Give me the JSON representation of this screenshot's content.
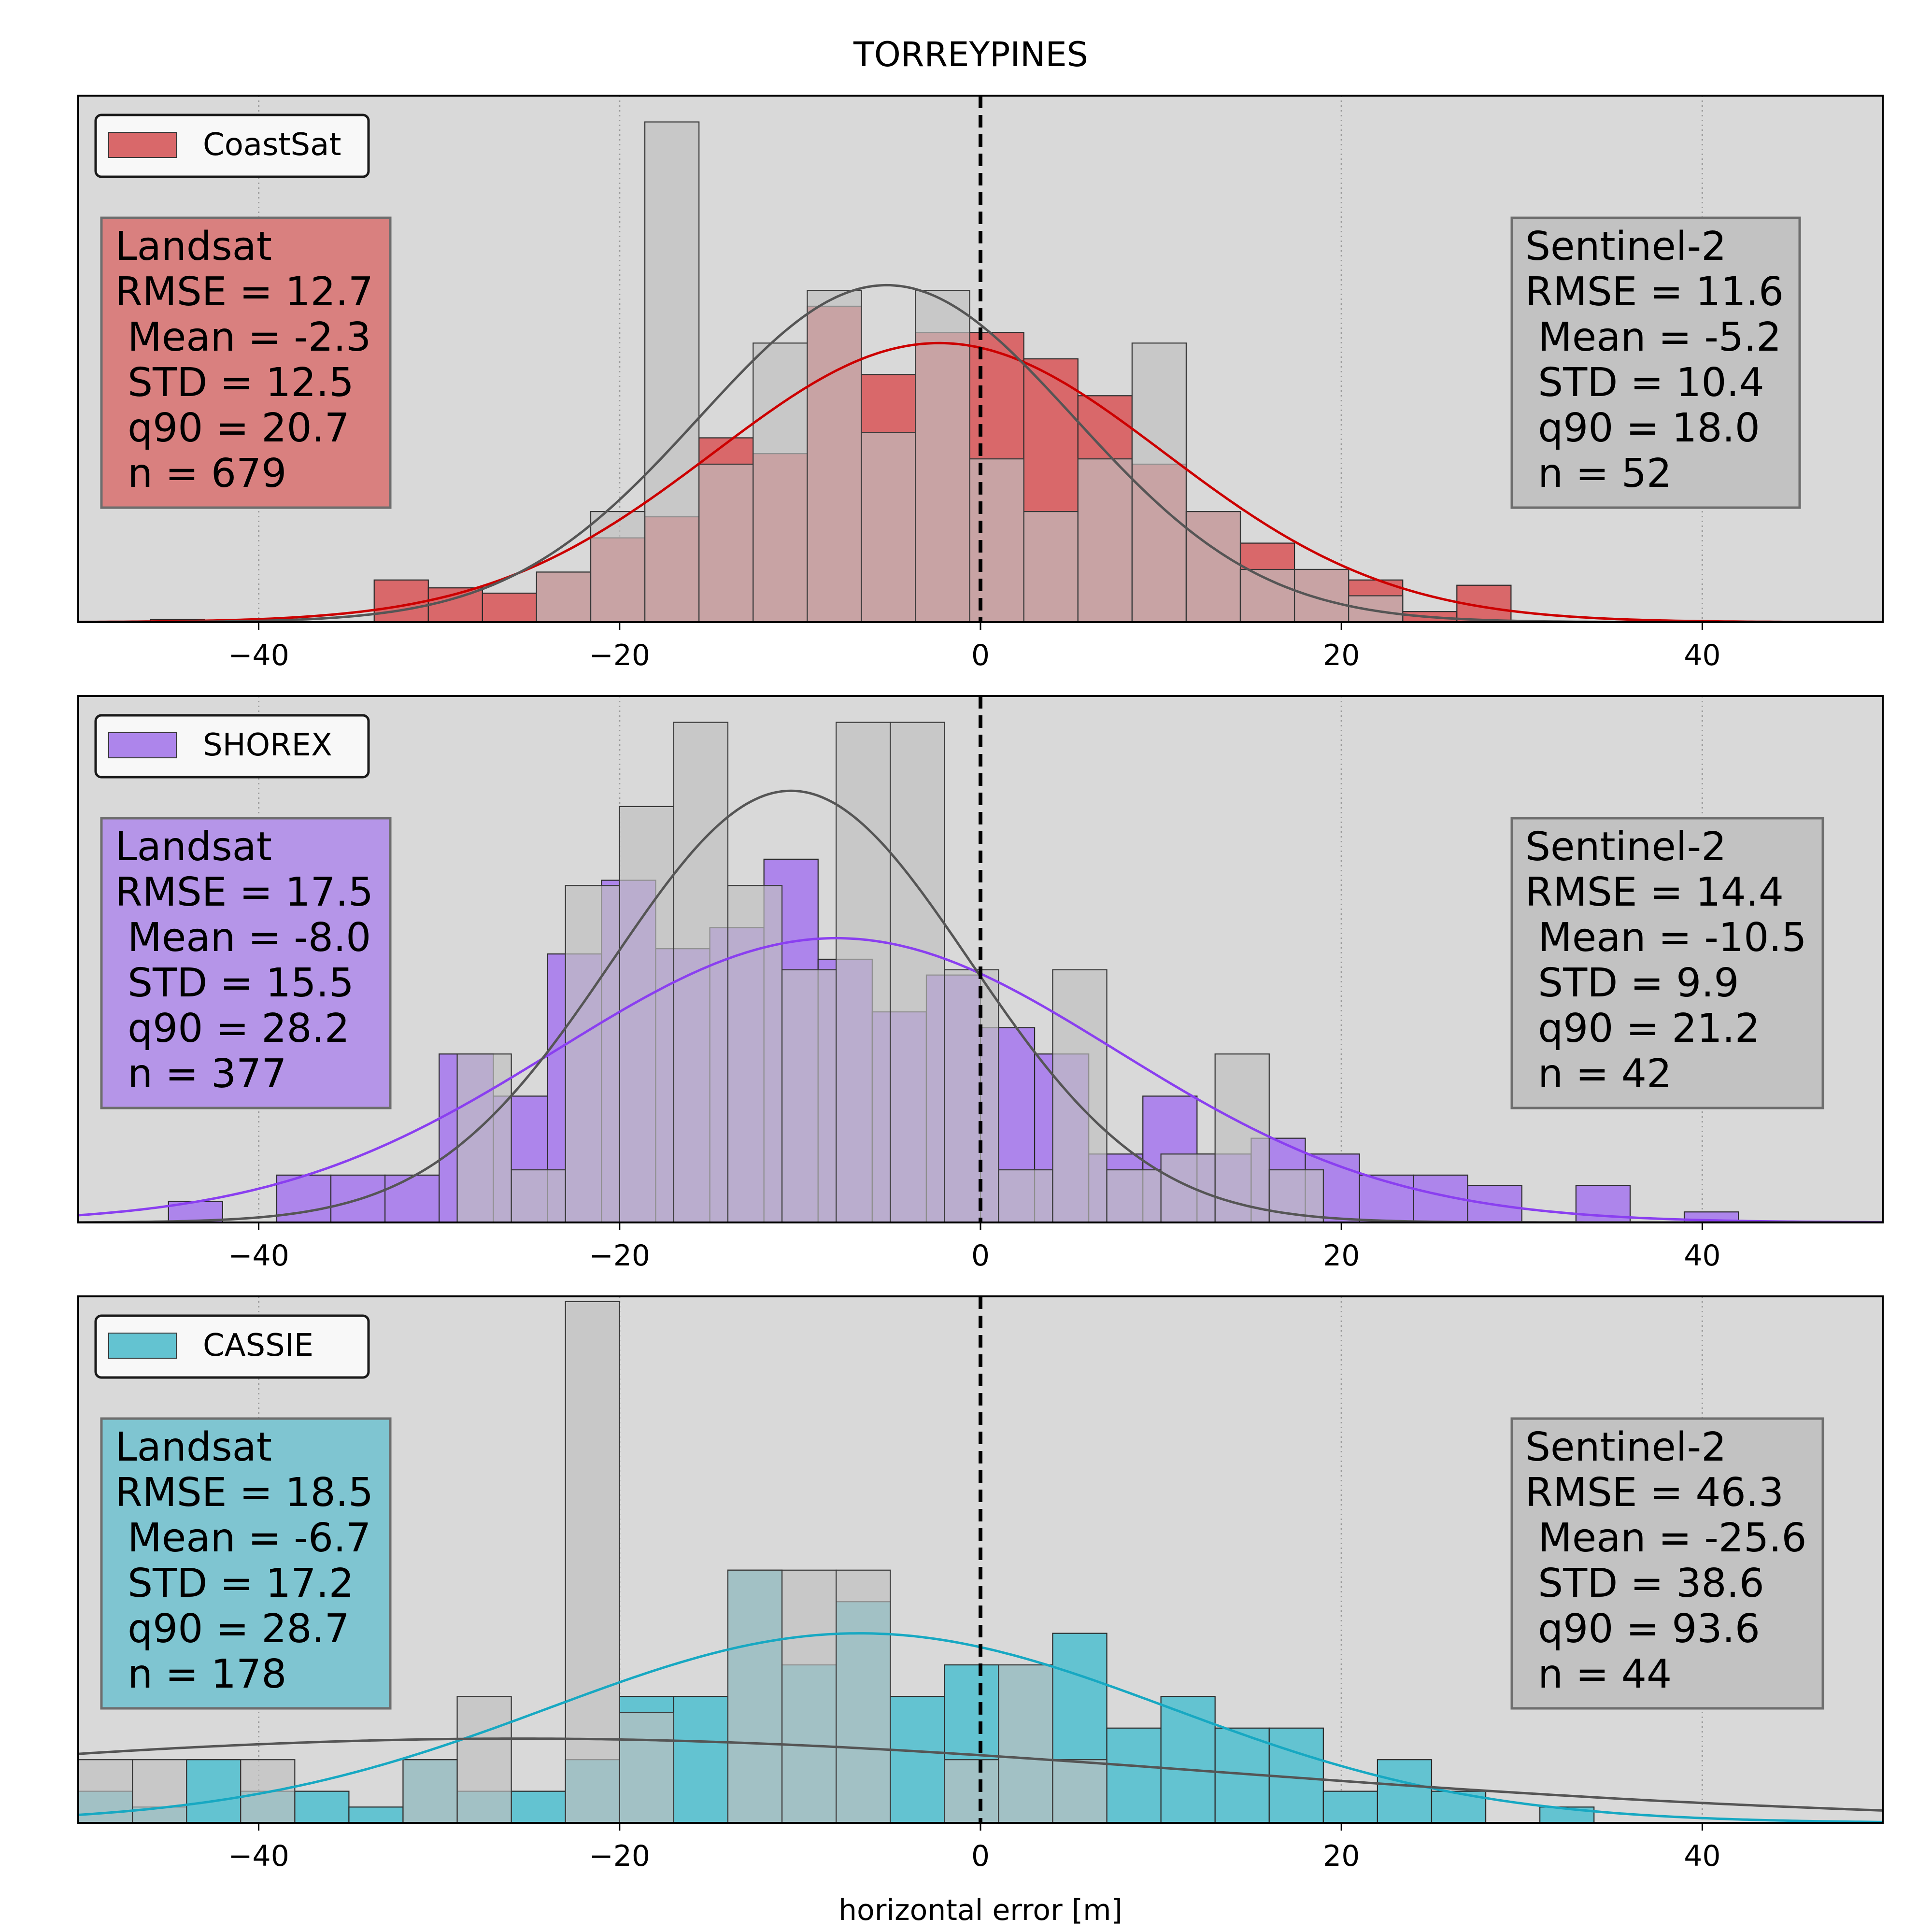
{
  "figure": {
    "title": "TORREYPINES",
    "xlabel": "horizontal error [m]"
  },
  "style": {
    "axes_bg": "#d9d9d9",
    "s2_bar": "#bfbfbf",
    "s2_curve": "#555555",
    "s2_box": "#c2c2c2",
    "zero_line": "#000000"
  },
  "chart_data": [
    {
      "type": "bar",
      "legend": "CoastSat",
      "color": "#d9686a",
      "curve_color": "#cc0000",
      "box_color": "#d9807f",
      "xlim": [
        -50,
        50
      ],
      "xticks": [
        -40,
        -20,
        0,
        20,
        40
      ],
      "grid": "x-dotted",
      "landsat": {
        "label": "Landsat",
        "stats": {
          "rmse": "RMSE = 12.7",
          "mean": " Mean = -2.3",
          "std": " STD = 12.5",
          "q90": " q90 = 20.7",
          "n": " n = 679"
        },
        "bins": [
          [
            -46,
            -43,
            0.005
          ],
          [
            -43,
            -40,
            0.003
          ],
          [
            -33.6,
            -30.6,
            0.08
          ],
          [
            -30.6,
            -27.6,
            0.065
          ],
          [
            -27.6,
            -24.6,
            0.055
          ],
          [
            -24.6,
            -21.6,
            0.095
          ],
          [
            -21.6,
            -18.6,
            0.16
          ],
          [
            -18.6,
            -15.6,
            0.2
          ],
          [
            -15.6,
            -12.6,
            0.35
          ],
          [
            -12.6,
            -9.6,
            0.32
          ],
          [
            -9.6,
            -6.6,
            0.6
          ],
          [
            -6.6,
            -3.6,
            0.47
          ],
          [
            -3.6,
            -0.6,
            0.55
          ],
          [
            -0.6,
            2.4,
            0.55
          ],
          [
            2.4,
            5.4,
            0.5
          ],
          [
            5.4,
            8.4,
            0.43
          ],
          [
            8.4,
            11.4,
            0.3
          ],
          [
            11.4,
            14.4,
            0.21
          ],
          [
            14.4,
            17.4,
            0.15
          ],
          [
            17.4,
            20.4,
            0.1
          ],
          [
            20.4,
            23.4,
            0.08
          ],
          [
            23.4,
            26.4,
            0.02
          ],
          [
            26.4,
            29.4,
            0.07
          ]
        ],
        "fit": {
          "mean": -2.3,
          "std": 12.5,
          "peak": 0.53
        }
      },
      "sentinel": {
        "label": "Sentinel-2",
        "stats": {
          "rmse": "RMSE = 11.6",
          "mean": " Mean = -5.2",
          "std": " STD = 10.4",
          "q90": " q90 = 18.0",
          "n": " n = 52"
        },
        "bins": [
          [
            -24.6,
            -21.6,
            0.095
          ],
          [
            -21.6,
            -18.6,
            0.21
          ],
          [
            -18.6,
            -15.6,
            0.95
          ],
          [
            -15.6,
            -12.6,
            0.3
          ],
          [
            -12.6,
            -9.6,
            0.53
          ],
          [
            -9.6,
            -6.6,
            0.63
          ],
          [
            -6.6,
            -3.6,
            0.36
          ],
          [
            -3.6,
            -0.6,
            0.63
          ],
          [
            -0.6,
            2.4,
            0.31
          ],
          [
            2.4,
            5.4,
            0.21
          ],
          [
            5.4,
            8.4,
            0.31
          ],
          [
            8.4,
            11.4,
            0.53
          ],
          [
            11.4,
            14.4,
            0.21
          ],
          [
            14.4,
            17.4,
            0.1
          ],
          [
            17.4,
            20.4,
            0.1
          ],
          [
            20.4,
            23.4,
            0.05
          ]
        ],
        "fit": {
          "mean": -5.2,
          "std": 10.4,
          "peak": 0.64
        }
      }
    },
    {
      "type": "bar",
      "legend": "SHOREX",
      "color": "#ad85eb",
      "curve_color": "#8a3ff0",
      "box_color": "#b595e8",
      "xlim": [
        -50,
        50
      ],
      "xticks": [
        -40,
        -20,
        0,
        20,
        40
      ],
      "grid": "x-dotted",
      "landsat": {
        "label": "Landsat",
        "stats": {
          "rmse": "RMSE = 17.5",
          "mean": " Mean = -8.0",
          "std": " STD = 15.5",
          "q90": " q90 = 28.2",
          "n": " n = 377"
        },
        "bins": [
          [
            -45,
            -42,
            0.04
          ],
          [
            -39,
            -36,
            0.09
          ],
          [
            -36,
            -33,
            0.09
          ],
          [
            -33,
            -30,
            0.09
          ],
          [
            -30,
            -27,
            0.32
          ],
          [
            -27,
            -24,
            0.24
          ],
          [
            -24,
            -21,
            0.51
          ],
          [
            -21,
            -18,
            0.65
          ],
          [
            -18,
            -15,
            0.52
          ],
          [
            -15,
            -12,
            0.56
          ],
          [
            -12,
            -9,
            0.69
          ],
          [
            -9,
            -6,
            0.5
          ],
          [
            -6,
            -3,
            0.4
          ],
          [
            -3,
            0,
            0.47
          ],
          [
            0,
            3,
            0.37
          ],
          [
            3,
            6,
            0.32
          ],
          [
            6,
            9,
            0.13
          ],
          [
            9,
            12,
            0.24
          ],
          [
            12,
            15,
            0.13
          ],
          [
            15,
            18,
            0.16
          ],
          [
            18,
            21,
            0.13
          ],
          [
            21,
            24,
            0.09
          ],
          [
            24,
            27,
            0.09
          ],
          [
            27,
            30,
            0.07
          ],
          [
            33,
            36,
            0.07
          ],
          [
            39,
            42,
            0.02
          ]
        ],
        "fit": {
          "mean": -8.0,
          "std": 15.5,
          "peak": 0.54
        }
      },
      "sentinel": {
        "label": "Sentinel-2",
        "stats": {
          "rmse": "RMSE = 14.4",
          "mean": " Mean = -10.5",
          "std": " STD = 9.9",
          "q90": " q90 = 21.2",
          "n": " n = 42"
        },
        "bins": [
          [
            -29,
            -26,
            0.32
          ],
          [
            -26,
            -23,
            0.1
          ],
          [
            -23,
            -20,
            0.64
          ],
          [
            -20,
            -17,
            0.79
          ],
          [
            -17,
            -14,
            0.95
          ],
          [
            -14,
            -11,
            0.64
          ],
          [
            -11,
            -8,
            0.48
          ],
          [
            -8,
            -5,
            0.95
          ],
          [
            -5,
            -2,
            0.95
          ],
          [
            -2,
            1,
            0.48
          ],
          [
            1,
            4,
            0.1
          ],
          [
            4,
            7,
            0.48
          ],
          [
            7,
            10,
            0.1
          ],
          [
            10,
            13,
            0.13
          ],
          [
            13,
            16,
            0.32
          ],
          [
            16,
            19,
            0.1
          ]
        ],
        "fit": {
          "mean": -10.5,
          "std": 9.9,
          "peak": 0.82
        }
      }
    },
    {
      "type": "bar",
      "legend": "CASSIE",
      "color": "#63c3d1",
      "curve_color": "#17a8c2",
      "box_color": "#7fc5d1",
      "xlim": [
        -50,
        50
      ],
      "xticks": [
        -40,
        -20,
        0,
        20,
        40
      ],
      "grid": "x-dotted",
      "landsat": {
        "label": "Landsat",
        "stats": {
          "rmse": "RMSE = 18.5",
          "mean": " Mean = -6.7",
          "std": " STD = 17.2",
          "q90": " q90 = 28.7",
          "n": " n = 178"
        },
        "bins": [
          [
            -50,
            -47,
            0.06
          ],
          [
            -47,
            -44,
            0.03
          ],
          [
            -44,
            -41,
            0.12
          ],
          [
            -41,
            -38,
            0.06
          ],
          [
            -38,
            -35,
            0.06
          ],
          [
            -35,
            -32,
            0.03
          ],
          [
            -32,
            -29,
            0.12
          ],
          [
            -29,
            -26,
            0.06
          ],
          [
            -26,
            -23,
            0.06
          ],
          [
            -23,
            -20,
            0.12
          ],
          [
            -20,
            -17,
            0.24
          ],
          [
            -17,
            -14,
            0.24
          ],
          [
            -14,
            -11,
            0.48
          ],
          [
            -11,
            -8,
            0.3
          ],
          [
            -8,
            -5,
            0.42
          ],
          [
            -5,
            -2,
            0.24
          ],
          [
            -2,
            1,
            0.3
          ],
          [
            1,
            4,
            0.3
          ],
          [
            4,
            7,
            0.36
          ],
          [
            7,
            10,
            0.18
          ],
          [
            10,
            13,
            0.24
          ],
          [
            13,
            16,
            0.18
          ],
          [
            16,
            19,
            0.18
          ],
          [
            19,
            22,
            0.06
          ],
          [
            22,
            25,
            0.12
          ],
          [
            25,
            28,
            0.06
          ],
          [
            31,
            34,
            0.03
          ]
        ],
        "fit": {
          "mean": -6.7,
          "std": 17.2,
          "peak": 0.36
        }
      },
      "sentinel": {
        "label": "Sentinel-2",
        "stats": {
          "rmse": "RMSE = 46.3",
          "mean": " Mean = -25.6",
          "std": " STD = 38.6",
          "q90": " q90 = 93.6",
          "n": " n = 44"
        },
        "bins": [
          [
            -50,
            -47,
            0.12
          ],
          [
            -47,
            -44,
            0.12
          ],
          [
            -41,
            -38,
            0.12
          ],
          [
            -32,
            -29,
            0.12
          ],
          [
            -29,
            -26,
            0.24
          ],
          [
            -23,
            -20,
            0.99
          ],
          [
            -20,
            -17,
            0.21
          ],
          [
            -14,
            -11,
            0.48
          ],
          [
            -11,
            -8,
            0.48
          ],
          [
            -8,
            -5,
            0.48
          ],
          [
            -2,
            1,
            0.12
          ],
          [
            1,
            4,
            0.3
          ],
          [
            4,
            7,
            0.12
          ]
        ],
        "fit": {
          "mean": -25.6,
          "std": 38.6,
          "peak": 0.16
        }
      }
    }
  ]
}
